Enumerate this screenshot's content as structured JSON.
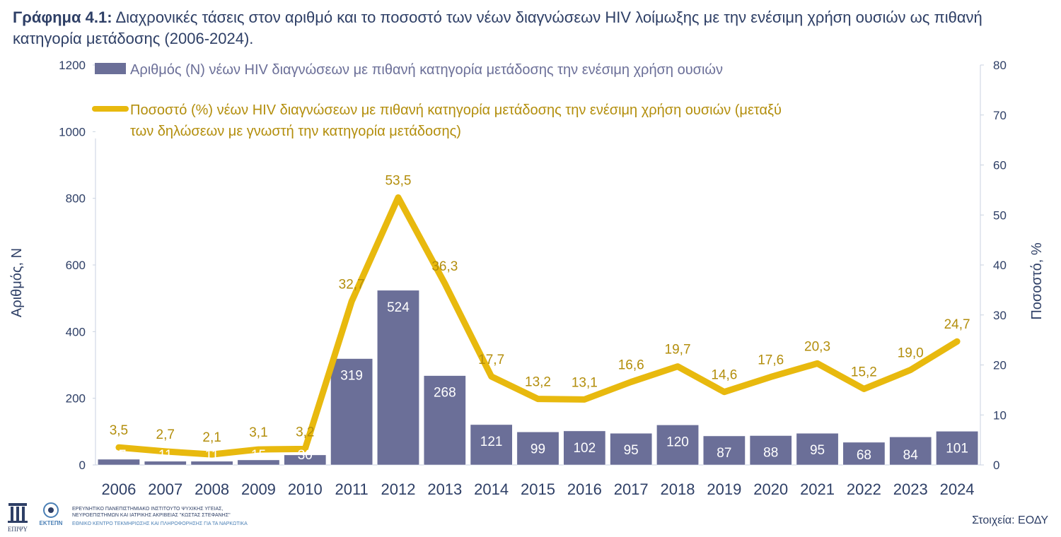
{
  "header": {
    "title_bold": "Γράφημα 4.1:",
    "title_text": "Διαχρονικές τάσεις στον αριθμό και το ποσοστό των νέων διαγνώσεων HIV λοίμωξης με την ενέσιμη χρήση ουσιών ως πιθανή κατηγορία μετάδοσης (2006-2024)."
  },
  "chart_data": {
    "type": "bar+line",
    "categories": [
      "2006",
      "2007",
      "2008",
      "2009",
      "2010",
      "2011",
      "2012",
      "2013",
      "2014",
      "2015",
      "2016",
      "2017",
      "2018",
      "2019",
      "2020",
      "2021",
      "2022",
      "2023",
      "2024"
    ],
    "series": [
      {
        "name": "Αριθμός (Ν) νέων HIV διαγνώσεων με πιθανή κατηγορία μετάδοσης την ενέσιμη χρήση ουσιών",
        "type": "bar",
        "axis": "left",
        "color": "#6b6f98",
        "values": [
          17,
          11,
          11,
          15,
          30,
          319,
          524,
          268,
          121,
          99,
          102,
          95,
          120,
          87,
          88,
          95,
          68,
          84,
          101
        ],
        "labels": [
          "17",
          "11",
          "11",
          "15",
          "30",
          "319",
          "524",
          "268",
          "121",
          "99",
          "102",
          "95",
          "120",
          "87",
          "88",
          "95",
          "68",
          "84",
          "101"
        ]
      },
      {
        "name": "Ποσοστό (%) νέων HIV διαγνώσεων με πιθανή κατηγορία μετάδοσης την ενέσιμη χρήση ουσιών (μεταξύ των δηλώσεων με γνωστή την κατηγορία μετάδοσης)",
        "type": "line",
        "axis": "right",
        "color": "#e8b90e",
        "label_color": "#b38e0c",
        "values": [
          3.5,
          2.7,
          2.1,
          3.1,
          3.2,
          32.7,
          53.5,
          36.3,
          17.7,
          13.2,
          13.1,
          16.6,
          19.7,
          14.6,
          17.6,
          20.3,
          15.2,
          19.0,
          24.7
        ],
        "labels": [
          "3,5",
          "2,7",
          "2,1",
          "3,1",
          "3,2",
          "32,7",
          "53,5",
          "36,3",
          "17,7",
          "13,2",
          "13,1",
          "16,6",
          "19,7",
          "14,6",
          "17,6",
          "20,3",
          "15,2",
          "19,0",
          "24,7"
        ]
      }
    ],
    "ylabel_left": "Αριθμός, Ν",
    "ylabel_right": "Ποσοστό, %",
    "ylim_left": [
      0,
      1200
    ],
    "ylim_right": [
      0,
      80
    ],
    "yticks_left": [
      0,
      200,
      400,
      600,
      800,
      1000,
      1200
    ],
    "yticks_right": [
      0,
      10,
      20,
      30,
      40,
      50,
      60,
      70,
      80
    ],
    "legend_placement": "top",
    "grid": false
  },
  "footer": {
    "logo1_text": "ΕΠΙΨΥ",
    "logo2_text": "ΕΚΤΕΠΝ",
    "org_line1": "ΕΡΕΥΝΗΤΙΚΟ ΠΑΝΕΠΙΣΤΗΜΙΑΚΟ ΙΝΣΤΙΤΟΥΤΟ ΨΥΧΙΚΗΣ ΥΓΕΙΑΣ,",
    "org_line2": "ΝΕΥΡΟΕΠΙΣΤΗΜΩΝ ΚΑΙ ΙΑΤΡΙΚΗΣ ΑΚΡΙΒΕΙΑΣ \"ΚΩΣΤΑΣ ΣΤΕΦΑΝΗΣ\"",
    "org_line3": "ΕΘΝΙΚΟ ΚΕΝΤΡΟ ΤΕΚΜΗΡΙΩΣΗΣ ΚΑΙ ΠΛΗΡΟΦΟΡΗΣΗΣ ΓΙΑ ΤΑ ΝΑΡΚΩΤΙΚΑ",
    "source": "Στοιχεία: ΕΟΔΥ"
  }
}
